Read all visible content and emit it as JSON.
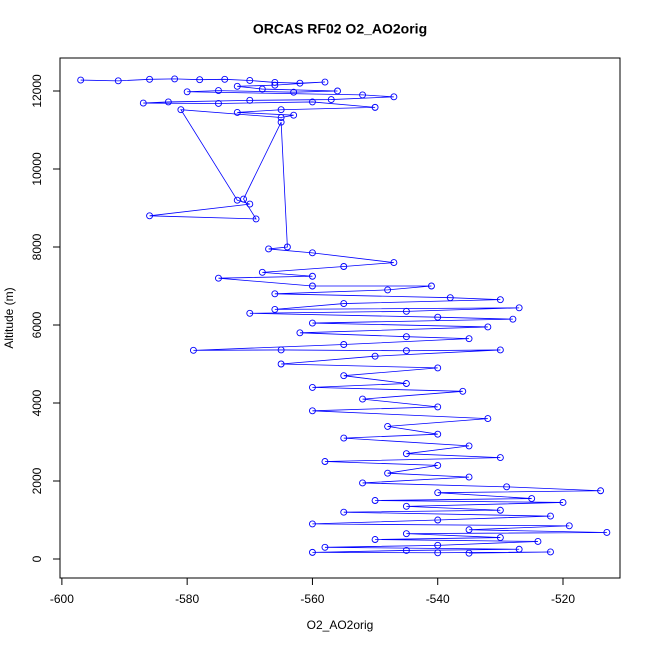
{
  "chart_data": {
    "type": "line",
    "title": "ORCAS RF02 O2_AO2orig",
    "x_label": "O2_AO2orig",
    "y_label": "Altitude (m)",
    "color": "#0000ff",
    "x": [
      -597,
      -591,
      -586,
      -582,
      -578,
      -574,
      -570,
      -566,
      -562,
      -558,
      -566,
      -572,
      -568,
      -556,
      -563,
      -575,
      -580,
      -552,
      -547,
      -557,
      -570,
      -583,
      -587,
      -575,
      -560,
      -550,
      -565,
      -572,
      -563,
      -565,
      -581,
      -572,
      -570,
      -586,
      -569,
      -571,
      -565,
      -564,
      -567,
      -560,
      -547,
      -555,
      -568,
      -560,
      -575,
      -560,
      -541,
      -548,
      -566,
      -538,
      -530,
      -555,
      -566,
      -527,
      -545,
      -570,
      -540,
      -528,
      -560,
      -532,
      -562,
      -545,
      -535,
      -555,
      -579,
      -565,
      -545,
      -530,
      -550,
      -565,
      -540,
      -555,
      -545,
      -560,
      -536,
      -552,
      -540,
      -560,
      -532,
      -548,
      -540,
      -555,
      -535,
      -545,
      -530,
      -558,
      -540,
      -548,
      -535,
      -552,
      -529,
      -514,
      -540,
      -525,
      -550,
      -520,
      -545,
      -530,
      -555,
      -522,
      -540,
      -560,
      -519,
      -535,
      -513,
      -545,
      -530,
      -550,
      -524,
      -540,
      -558,
      -527,
      -545,
      -560,
      -540,
      -522,
      -535
    ],
    "values": [
      12280,
      12260,
      12300,
      12310,
      12290,
      12300,
      12270,
      12220,
      12200,
      12230,
      12150,
      12120,
      12050,
      12000,
      11970,
      12010,
      11980,
      11900,
      11850,
      11780,
      11760,
      11720,
      11690,
      11680,
      11720,
      11580,
      11520,
      11450,
      11380,
      11320,
      11520,
      9200,
      9100,
      8800,
      8720,
      9230,
      11200,
      8000,
      7950,
      7850,
      7600,
      7500,
      7350,
      7250,
      7200,
      7000,
      7000,
      6900,
      6800,
      6700,
      6650,
      6550,
      6400,
      6440,
      6350,
      6300,
      6200,
      6150,
      6050,
      5950,
      5800,
      5700,
      5650,
      5500,
      5350,
      5360,
      5340,
      5360,
      5200,
      5000,
      4900,
      4700,
      4500,
      4400,
      4300,
      4100,
      3900,
      3800,
      3600,
      3400,
      3200,
      3100,
      2900,
      2700,
      2600,
      2500,
      2400,
      2200,
      2100,
      1950,
      1850,
      1750,
      1700,
      1550,
      1500,
      1450,
      1350,
      1250,
      1200,
      1100,
      1000,
      900,
      850,
      750,
      680,
      650,
      550,
      500,
      450,
      350,
      300,
      250,
      220,
      170,
      160,
      180,
      150
    ],
    "xlim": [
      -600.3,
      -510.9
    ],
    "ylim": [
      -487,
      12846
    ],
    "xticks": [
      -600,
      -580,
      -560,
      -540,
      -520
    ],
    "yticks": [
      0,
      2000,
      4000,
      6000,
      8000,
      10000,
      12000
    ]
  }
}
